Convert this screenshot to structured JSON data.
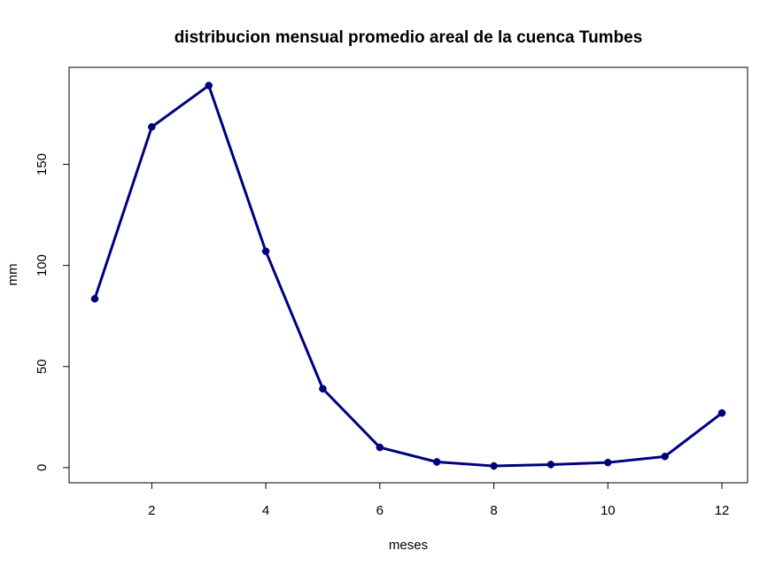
{
  "chart_data": {
    "type": "line",
    "title": "distribucion mensual promedio areal de la cuenca Tumbes",
    "xlabel": "meses",
    "ylabel": "mm",
    "x": [
      1,
      2,
      3,
      4,
      5,
      6,
      7,
      8,
      9,
      10,
      11,
      12
    ],
    "series": [
      {
        "values": [
          83.5,
          168.5,
          189,
          107,
          39,
          10,
          2.8,
          0.8,
          1.5,
          2.5,
          5.5,
          27
        ]
      }
    ],
    "xlim": [
      0.55,
      12.45
    ],
    "ylim": [
      -7.5,
      198
    ],
    "xticks": [
      2,
      4,
      6,
      8,
      10,
      12
    ],
    "yticks": [
      0,
      50,
      100,
      150
    ],
    "grid": false,
    "line_color": "#00007f",
    "marker": "filled-cross"
  }
}
